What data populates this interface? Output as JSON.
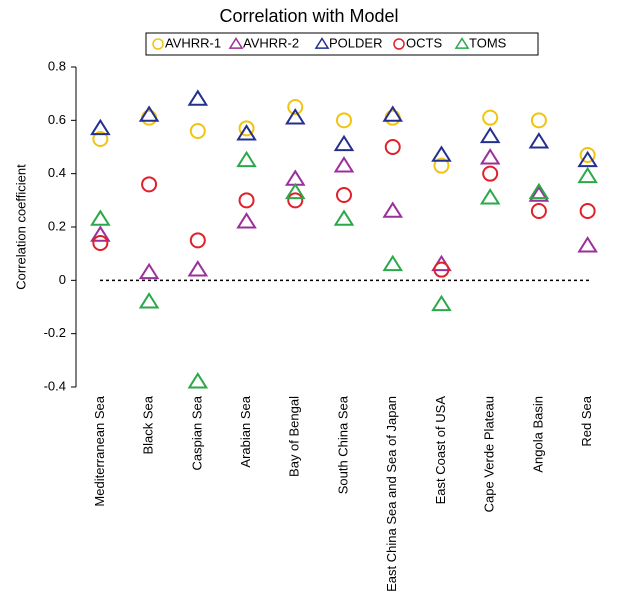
{
  "chart_data": {
    "type": "scatter",
    "title": "Correlation with Model",
    "y_label": "Correlation coefficient",
    "categories": [
      "Mediterranean Sea",
      "Black Sea",
      "Caspian Sea",
      "Arabian Sea",
      "Bay of Bengal",
      "South China Sea",
      "East China Sea and Sea of Japan",
      "East Coast of USA",
      "Cape Verde Plateau",
      "Angola Basin",
      "Red Sea"
    ],
    "series": [
      {
        "name": "AVHRR-1",
        "color": "#f2c40f",
        "marker": "circle",
        "values": [
          0.53,
          0.61,
          0.56,
          0.57,
          0.65,
          0.6,
          0.61,
          0.43,
          0.61,
          0.6,
          0.47
        ]
      },
      {
        "name": "AVHRR-2",
        "color": "#9b2f9b",
        "marker": "triangle",
        "values": [
          0.17,
          0.03,
          0.04,
          0.22,
          0.38,
          0.43,
          0.26,
          0.06,
          0.46,
          0.32,
          0.13
        ]
      },
      {
        "name": "POLDER",
        "color": "#23308f",
        "marker": "triangle",
        "values": [
          0.57,
          0.62,
          0.68,
          0.55,
          0.61,
          0.51,
          0.62,
          0.47,
          0.54,
          0.52,
          0.45
        ]
      },
      {
        "name": "OCTS",
        "color": "#e0202a",
        "marker": "circle",
        "values": [
          0.14,
          0.36,
          0.15,
          0.3,
          0.3,
          0.32,
          0.5,
          0.04,
          0.4,
          0.26,
          0.26
        ]
      },
      {
        "name": "TOMS",
        "color": "#2aa84a",
        "marker": "triangle",
        "values": [
          0.23,
          -0.08,
          -0.38,
          0.45,
          0.33,
          0.23,
          0.06,
          -0.09,
          0.31,
          0.33,
          0.39
        ]
      }
    ],
    "ylim": [
      -0.4,
      0.8
    ],
    "yticks": [
      0.8,
      0.6,
      0.4,
      0.2,
      0,
      -0.2,
      -0.4
    ],
    "reference_line": 0,
    "legend": "top"
  }
}
